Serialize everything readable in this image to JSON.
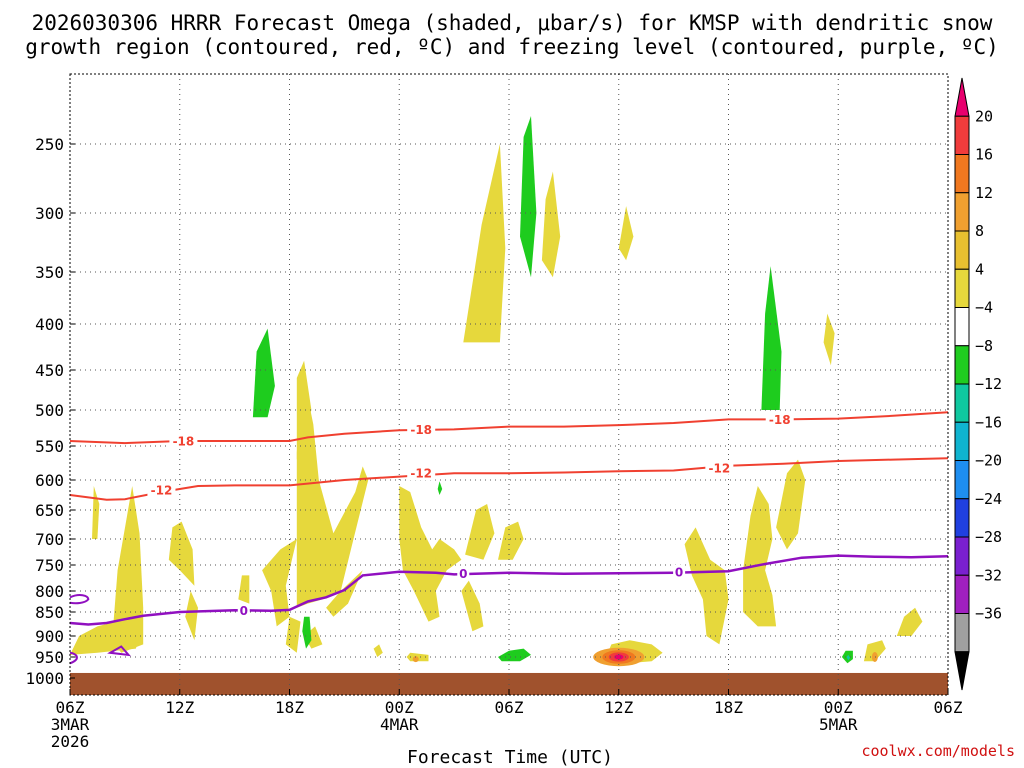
{
  "chart_data": {
    "type": "time-height",
    "title_line1": "2026030306 HRRR Forecast Omega (shaded, μbar/s) for KMSP with dendritic snow",
    "title_line2": "growth region (contoured, red, ºC) and freezing level (contoured, purple, ºC)",
    "xlabel": "Forecast Time (UTC)",
    "credit": "coolwx.com/models",
    "x_hours_range": [
      0,
      48
    ],
    "y_pressure_range": [
      1000,
      200
    ],
    "y_ticks": [
      250,
      300,
      350,
      400,
      450,
      500,
      550,
      600,
      650,
      700,
      750,
      800,
      850,
      900,
      950,
      1000
    ],
    "x_ticks": [
      {
        "h": 0,
        "label": "06Z",
        "sub1": "3MAR",
        "sub2": "2026"
      },
      {
        "h": 6,
        "label": "12Z",
        "sub1": "",
        "sub2": ""
      },
      {
        "h": 12,
        "label": "18Z",
        "sub1": "",
        "sub2": ""
      },
      {
        "h": 18,
        "label": "00Z",
        "sub1": "4MAR",
        "sub2": ""
      },
      {
        "h": 24,
        "label": "06Z",
        "sub1": "",
        "sub2": ""
      },
      {
        "h": 30,
        "label": "12Z",
        "sub1": "",
        "sub2": ""
      },
      {
        "h": 36,
        "label": "18Z",
        "sub1": "",
        "sub2": ""
      },
      {
        "h": 42,
        "label": "00Z",
        "sub1": "5MAR",
        "sub2": ""
      },
      {
        "h": 48,
        "label": "06Z",
        "sub1": "",
        "sub2": ""
      }
    ],
    "colorbar": {
      "levels": [
        "20",
        "16",
        "12",
        "8",
        "4",
        "−4",
        "−8",
        "−12",
        "−16",
        "−20",
        "−24",
        "−28",
        "−32",
        "−36"
      ],
      "colors": [
        "#e8006e",
        "#f03c3c",
        "#f07820",
        "#f0a030",
        "#e8c030",
        "#e6d83c",
        "#ffffff",
        "#20cc20",
        "#10c8a0",
        "#10b4d0",
        "#1e8ef0",
        "#2040e0",
        "#7a20d0",
        "#a020c0",
        "#a0a0a0",
        "#000000"
      ]
    },
    "contours": [
      {
        "label": "-18",
        "color": "#f04030",
        "points": [
          [
            0,
            543
          ],
          [
            3,
            546
          ],
          [
            6,
            543
          ],
          [
            9,
            543
          ],
          [
            12,
            543
          ],
          [
            13,
            538
          ],
          [
            15,
            533
          ],
          [
            18,
            528
          ],
          [
            21,
            527
          ],
          [
            24,
            523
          ],
          [
            27,
            523
          ],
          [
            30,
            521
          ],
          [
            33,
            518
          ],
          [
            36,
            513
          ],
          [
            39,
            513
          ],
          [
            42,
            512
          ],
          [
            45,
            508
          ],
          [
            48,
            503
          ]
        ]
      },
      {
        "label": "-12",
        "color": "#f04030",
        "points": [
          [
            0,
            625
          ],
          [
            2,
            633
          ],
          [
            3,
            632
          ],
          [
            5,
            620
          ],
          [
            7,
            610
          ],
          [
            9,
            609
          ],
          [
            12,
            609
          ],
          [
            15,
            600
          ],
          [
            18,
            595
          ],
          [
            21,
            590
          ],
          [
            24,
            590
          ],
          [
            27,
            589
          ],
          [
            30,
            587
          ],
          [
            33,
            586
          ],
          [
            36,
            579
          ],
          [
            39,
            576
          ],
          [
            42,
            572
          ],
          [
            45,
            570
          ],
          [
            48,
            568
          ]
        ]
      },
      {
        "label": "0",
        "color": "#9010c0",
        "points": [
          [
            0,
            873
          ],
          [
            1,
            876
          ],
          [
            2,
            873
          ],
          [
            3,
            865
          ],
          [
            4,
            858
          ],
          [
            6,
            850
          ],
          [
            9,
            846
          ],
          [
            11,
            847
          ],
          [
            12,
            845
          ],
          [
            13,
            825
          ],
          [
            14,
            815
          ],
          [
            15,
            798
          ],
          [
            16,
            770
          ],
          [
            18,
            763
          ],
          [
            20,
            765
          ],
          [
            21,
            768
          ],
          [
            24,
            765
          ],
          [
            27,
            767
          ],
          [
            30,
            766
          ],
          [
            33,
            765
          ],
          [
            36,
            762
          ],
          [
            38,
            748
          ],
          [
            40,
            736
          ],
          [
            42,
            732
          ],
          [
            44,
            734
          ],
          [
            46,
            735
          ],
          [
            48,
            733
          ]
        ]
      }
    ],
    "freezing_label_positions": [
      [
        9.5,
        847
      ],
      [
        21.5,
        766
      ],
      [
        33.3,
        763
      ]
    ],
    "dgz_label_positions_minus18": [
      [
        6.2,
        543
      ],
      [
        19.2,
        527
      ],
      [
        38.8,
        513
      ]
    ],
    "dgz_label_positions_minus12": [
      [
        5,
        617
      ],
      [
        19.2,
        590
      ],
      [
        35.5,
        582
      ]
    ],
    "omega_features": [
      {
        "name": "yellow-ascent-upper",
        "value": 5,
        "hours": [
          [
            21.5,
            420
          ],
          [
            22.5,
            310
          ],
          [
            23.5,
            250
          ],
          [
            23.8,
            330
          ],
          [
            23.5,
            420
          ]
        ]
      },
      {
        "name": "yellow-ascent-upper2",
        "value": 5,
        "hours": [
          [
            25.8,
            340
          ],
          [
            26,
            290
          ],
          [
            26.4,
            270
          ],
          [
            26.8,
            320
          ],
          [
            26.4,
            355
          ]
        ]
      },
      {
        "name": "yellow-ascent-upper3",
        "value": 5,
        "hours": [
          [
            30,
            330
          ],
          [
            30.4,
            295
          ],
          [
            30.8,
            320
          ],
          [
            30.4,
            340
          ]
        ]
      },
      {
        "name": "green-descent-upper",
        "value": -5,
        "hours": [
          [
            24.6,
            320
          ],
          [
            24.8,
            245
          ],
          [
            25.2,
            230
          ],
          [
            25.5,
            300
          ],
          [
            25.2,
            355
          ]
        ]
      },
      {
        "name": "green-descent-right",
        "value": -5,
        "hours": [
          [
            37.8,
            500
          ],
          [
            38,
            390
          ],
          [
            38.3,
            345
          ],
          [
            38.9,
            430
          ],
          [
            38.8,
            500
          ]
        ]
      },
      {
        "name": "green-descent-left",
        "value": -5,
        "hours": [
          [
            10,
            510
          ],
          [
            10.2,
            430
          ],
          [
            10.8,
            405
          ],
          [
            11.2,
            470
          ],
          [
            10.8,
            510
          ]
        ]
      }
    ],
    "max_ascent_hour": 30,
    "max_ascent_pressure": 950,
    "max_ascent_value": 20
  }
}
